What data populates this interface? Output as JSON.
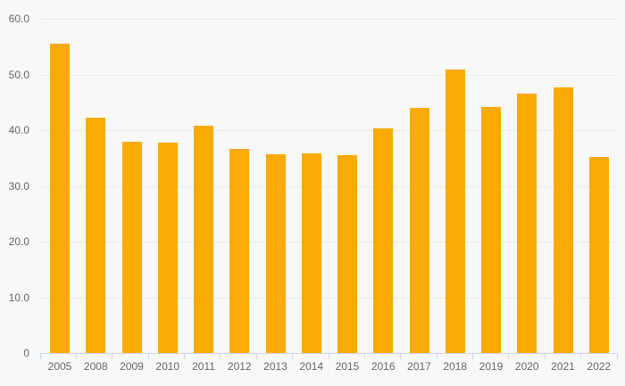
{
  "chart_data": {
    "type": "bar",
    "title": "",
    "xlabel": "",
    "ylabel": "",
    "categories": [
      "2005",
      "2008",
      "2009",
      "2010",
      "2011",
      "2012",
      "2013",
      "2014",
      "2015",
      "2016",
      "2017",
      "2018",
      "2019",
      "2020",
      "2021",
      "2022"
    ],
    "values": [
      55.5,
      42.2,
      37.9,
      37.7,
      40.8,
      36.7,
      35.6,
      35.8,
      35.5,
      40.3,
      44.0,
      50.9,
      44.2,
      46.6,
      47.6,
      35.2
    ],
    "ylim": [
      0,
      60
    ],
    "ytick_step": 10,
    "ytick_labels": [
      "0",
      "10.0",
      "20.0",
      "30.0",
      "40.0",
      "50.0",
      "60.0"
    ],
    "grid": true,
    "legend": false,
    "colors": {
      "bar": "#FAAA05",
      "background": "#f8f8f8",
      "gridline": "#e8e8e8",
      "axis_line": "#ccd6eb",
      "label": "#666666"
    }
  }
}
